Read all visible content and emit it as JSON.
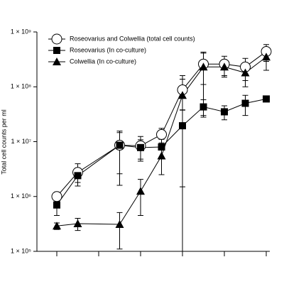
{
  "chart_data": {
    "type": "line",
    "y_label": "Total cell counts per ml",
    "log_y": true,
    "xlim": [
      0,
      10
    ],
    "xticks": [
      0,
      2,
      4,
      6,
      8,
      10
    ],
    "ylim": [
      100000,
      1000000000
    ],
    "yticks": [
      {
        "value": 100000,
        "label": "1 × 10⁵"
      },
      {
        "value": 1000000,
        "label": "1 × 10⁶"
      },
      {
        "value": 10000000,
        "label": "1 × 10⁷"
      },
      {
        "value": 100000000,
        "label": "1 × 10⁸"
      },
      {
        "value": 1000000000,
        "label": "1 × 10⁹"
      }
    ],
    "legend": "upper left",
    "x": [
      0,
      1,
      3,
      4,
      5,
      6,
      7,
      8,
      9,
      10
    ],
    "series": [
      {
        "name": "Roseovarius and Colwellia (total cell counts)",
        "color": "#000000",
        "marker": "circle-open",
        "values": [
          1000000,
          2750000,
          8600000,
          8400000,
          13500000,
          88000000,
          260000000,
          260000000,
          230000000,
          440000000
        ],
        "errors": [
          200000,
          1200000,
          6000000,
          4000000,
          4000000,
          50000000,
          150000000,
          100000000,
          100000000,
          150000000
        ]
      },
      {
        "name": "Roseovarius (In co-culture)",
        "color": "#000000",
        "marker": "square",
        "values": [
          700000,
          2400000,
          8600000,
          7800000,
          8000000,
          19500000,
          43000000,
          35000000,
          50000000,
          60000000
        ],
        "errors": [
          250000,
          600000,
          7000000,
          3000000,
          3000000,
          18000000,
          15000000,
          10000000,
          20000000,
          5000000
        ]
      },
      {
        "name": "Colwellia (In co-culture)",
        "color": "#000000",
        "marker": "triangle",
        "values": [
          290000,
          320000,
          310000,
          1250000,
          5500000,
          70000000,
          230000000,
          230000000,
          180000000,
          350000000
        ],
        "errors": [
          40000,
          80000,
          200000,
          800000,
          3000000,
          90000000,
          200000000,
          80000000,
          80000000,
          150000000
        ]
      }
    ]
  }
}
